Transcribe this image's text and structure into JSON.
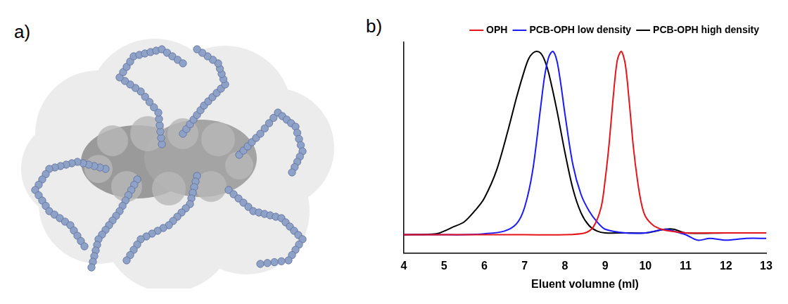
{
  "panel_labels": [
    "a)",
    "b)"
  ],
  "chart_data": {
    "type": "line",
    "x_label": "Eluent volumne (ml)",
    "xlim": [
      4,
      13
    ],
    "xticks": [
      4,
      5,
      6,
      7,
      8,
      9,
      10,
      11,
      12,
      13
    ],
    "ylim": [
      -0.1,
      1.05
    ],
    "tick_labels": "x",
    "grid": false,
    "legend": "top-right",
    "series": [
      {
        "name": "OPH",
        "color": "#e8141c",
        "x": [
          4,
          5,
          6,
          7,
          8,
          8.5,
          8.7,
          8.9,
          9.0,
          9.1,
          9.2,
          9.3,
          9.4,
          9.5,
          9.6,
          9.7,
          9.8,
          9.9,
          10.0,
          10.2,
          10.4,
          10.6,
          11,
          12,
          13
        ],
        "values": [
          0,
          0,
          0,
          0,
          0,
          0.01,
          0.04,
          0.15,
          0.3,
          0.5,
          0.75,
          0.95,
          1.0,
          0.93,
          0.72,
          0.48,
          0.3,
          0.17,
          0.1,
          0.05,
          0.03,
          0.02,
          0.01,
          0.01,
          0.01
        ]
      },
      {
        "name": "PCB-OPH low density",
        "color": "#1a1aff",
        "x": [
          4,
          5,
          5.5,
          6,
          6.5,
          6.8,
          7.0,
          7.2,
          7.4,
          7.5,
          7.6,
          7.7,
          7.8,
          7.9,
          8.0,
          8.2,
          8.4,
          8.6,
          8.8,
          9.0,
          9.5,
          10,
          10.5,
          10.7,
          11,
          11.3,
          11.6,
          12,
          12.5,
          13
        ],
        "values": [
          0,
          0,
          0,
          0.005,
          0.02,
          0.06,
          0.15,
          0.35,
          0.7,
          0.87,
          0.97,
          1.0,
          0.95,
          0.82,
          0.66,
          0.38,
          0.22,
          0.13,
          0.07,
          0.03,
          0.01,
          0.01,
          0.03,
          0.02,
          0,
          -0.03,
          -0.02,
          -0.03,
          -0.02,
          -0.02
        ]
      },
      {
        "name": "PCB-OPH high density",
        "color": "#000000",
        "x": [
          4,
          4.8,
          5.0,
          5.2,
          5.5,
          5.8,
          6.0,
          6.3,
          6.6,
          6.8,
          7.0,
          7.1,
          7.2,
          7.3,
          7.4,
          7.5,
          7.6,
          7.8,
          8.0,
          8.2,
          8.4,
          8.6,
          8.8,
          9.0,
          9.5,
          10,
          10.5,
          10.7,
          11,
          12,
          13
        ],
        "values": [
          0,
          0.005,
          0.02,
          0.04,
          0.07,
          0.14,
          0.2,
          0.35,
          0.58,
          0.75,
          0.9,
          0.96,
          0.99,
          1.0,
          0.99,
          0.95,
          0.88,
          0.68,
          0.45,
          0.25,
          0.12,
          0.05,
          0.02,
          0.01,
          0.01,
          0.01,
          0.03,
          0.03,
          0.01,
          0.01,
          0.01
        ]
      }
    ]
  }
}
